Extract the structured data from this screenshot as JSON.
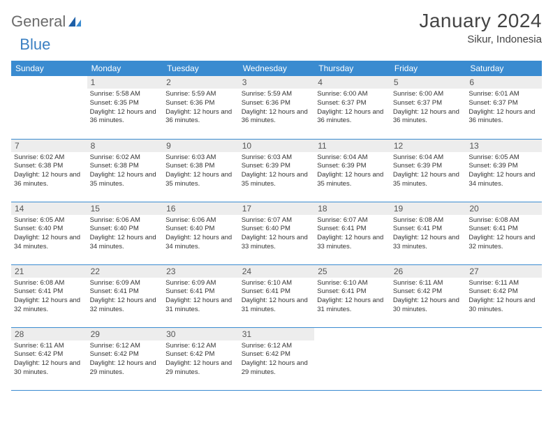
{
  "logo": {
    "part1": "General",
    "part2": "Blue"
  },
  "title": "January 2024",
  "location": "Sikur, Indonesia",
  "colors": {
    "header_bg": "#3a8bd0",
    "header_text": "#ffffff",
    "daynum_bg": "#ededed",
    "border": "#3a8bd0",
    "logo_gray": "#6b6b6b",
    "logo_blue": "#3a7fc2"
  },
  "weekdays": [
    "Sunday",
    "Monday",
    "Tuesday",
    "Wednesday",
    "Thursday",
    "Friday",
    "Saturday"
  ],
  "weeks": [
    [
      {
        "n": "",
        "sr": "",
        "ss": "",
        "dl": ""
      },
      {
        "n": "1",
        "sr": "Sunrise: 5:58 AM",
        "ss": "Sunset: 6:35 PM",
        "dl": "Daylight: 12 hours and 36 minutes."
      },
      {
        "n": "2",
        "sr": "Sunrise: 5:59 AM",
        "ss": "Sunset: 6:36 PM",
        "dl": "Daylight: 12 hours and 36 minutes."
      },
      {
        "n": "3",
        "sr": "Sunrise: 5:59 AM",
        "ss": "Sunset: 6:36 PM",
        "dl": "Daylight: 12 hours and 36 minutes."
      },
      {
        "n": "4",
        "sr": "Sunrise: 6:00 AM",
        "ss": "Sunset: 6:37 PM",
        "dl": "Daylight: 12 hours and 36 minutes."
      },
      {
        "n": "5",
        "sr": "Sunrise: 6:00 AM",
        "ss": "Sunset: 6:37 PM",
        "dl": "Daylight: 12 hours and 36 minutes."
      },
      {
        "n": "6",
        "sr": "Sunrise: 6:01 AM",
        "ss": "Sunset: 6:37 PM",
        "dl": "Daylight: 12 hours and 36 minutes."
      }
    ],
    [
      {
        "n": "7",
        "sr": "Sunrise: 6:02 AM",
        "ss": "Sunset: 6:38 PM",
        "dl": "Daylight: 12 hours and 36 minutes."
      },
      {
        "n": "8",
        "sr": "Sunrise: 6:02 AM",
        "ss": "Sunset: 6:38 PM",
        "dl": "Daylight: 12 hours and 35 minutes."
      },
      {
        "n": "9",
        "sr": "Sunrise: 6:03 AM",
        "ss": "Sunset: 6:38 PM",
        "dl": "Daylight: 12 hours and 35 minutes."
      },
      {
        "n": "10",
        "sr": "Sunrise: 6:03 AM",
        "ss": "Sunset: 6:39 PM",
        "dl": "Daylight: 12 hours and 35 minutes."
      },
      {
        "n": "11",
        "sr": "Sunrise: 6:04 AM",
        "ss": "Sunset: 6:39 PM",
        "dl": "Daylight: 12 hours and 35 minutes."
      },
      {
        "n": "12",
        "sr": "Sunrise: 6:04 AM",
        "ss": "Sunset: 6:39 PM",
        "dl": "Daylight: 12 hours and 35 minutes."
      },
      {
        "n": "13",
        "sr": "Sunrise: 6:05 AM",
        "ss": "Sunset: 6:39 PM",
        "dl": "Daylight: 12 hours and 34 minutes."
      }
    ],
    [
      {
        "n": "14",
        "sr": "Sunrise: 6:05 AM",
        "ss": "Sunset: 6:40 PM",
        "dl": "Daylight: 12 hours and 34 minutes."
      },
      {
        "n": "15",
        "sr": "Sunrise: 6:06 AM",
        "ss": "Sunset: 6:40 PM",
        "dl": "Daylight: 12 hours and 34 minutes."
      },
      {
        "n": "16",
        "sr": "Sunrise: 6:06 AM",
        "ss": "Sunset: 6:40 PM",
        "dl": "Daylight: 12 hours and 34 minutes."
      },
      {
        "n": "17",
        "sr": "Sunrise: 6:07 AM",
        "ss": "Sunset: 6:40 PM",
        "dl": "Daylight: 12 hours and 33 minutes."
      },
      {
        "n": "18",
        "sr": "Sunrise: 6:07 AM",
        "ss": "Sunset: 6:41 PM",
        "dl": "Daylight: 12 hours and 33 minutes."
      },
      {
        "n": "19",
        "sr": "Sunrise: 6:08 AM",
        "ss": "Sunset: 6:41 PM",
        "dl": "Daylight: 12 hours and 33 minutes."
      },
      {
        "n": "20",
        "sr": "Sunrise: 6:08 AM",
        "ss": "Sunset: 6:41 PM",
        "dl": "Daylight: 12 hours and 32 minutes."
      }
    ],
    [
      {
        "n": "21",
        "sr": "Sunrise: 6:08 AM",
        "ss": "Sunset: 6:41 PM",
        "dl": "Daylight: 12 hours and 32 minutes."
      },
      {
        "n": "22",
        "sr": "Sunrise: 6:09 AM",
        "ss": "Sunset: 6:41 PM",
        "dl": "Daylight: 12 hours and 32 minutes."
      },
      {
        "n": "23",
        "sr": "Sunrise: 6:09 AM",
        "ss": "Sunset: 6:41 PM",
        "dl": "Daylight: 12 hours and 31 minutes."
      },
      {
        "n": "24",
        "sr": "Sunrise: 6:10 AM",
        "ss": "Sunset: 6:41 PM",
        "dl": "Daylight: 12 hours and 31 minutes."
      },
      {
        "n": "25",
        "sr": "Sunrise: 6:10 AM",
        "ss": "Sunset: 6:41 PM",
        "dl": "Daylight: 12 hours and 31 minutes."
      },
      {
        "n": "26",
        "sr": "Sunrise: 6:11 AM",
        "ss": "Sunset: 6:42 PM",
        "dl": "Daylight: 12 hours and 30 minutes."
      },
      {
        "n": "27",
        "sr": "Sunrise: 6:11 AM",
        "ss": "Sunset: 6:42 PM",
        "dl": "Daylight: 12 hours and 30 minutes."
      }
    ],
    [
      {
        "n": "28",
        "sr": "Sunrise: 6:11 AM",
        "ss": "Sunset: 6:42 PM",
        "dl": "Daylight: 12 hours and 30 minutes."
      },
      {
        "n": "29",
        "sr": "Sunrise: 6:12 AM",
        "ss": "Sunset: 6:42 PM",
        "dl": "Daylight: 12 hours and 29 minutes."
      },
      {
        "n": "30",
        "sr": "Sunrise: 6:12 AM",
        "ss": "Sunset: 6:42 PM",
        "dl": "Daylight: 12 hours and 29 minutes."
      },
      {
        "n": "31",
        "sr": "Sunrise: 6:12 AM",
        "ss": "Sunset: 6:42 PM",
        "dl": "Daylight: 12 hours and 29 minutes."
      },
      {
        "n": "",
        "sr": "",
        "ss": "",
        "dl": ""
      },
      {
        "n": "",
        "sr": "",
        "ss": "",
        "dl": ""
      },
      {
        "n": "",
        "sr": "",
        "ss": "",
        "dl": ""
      }
    ]
  ]
}
